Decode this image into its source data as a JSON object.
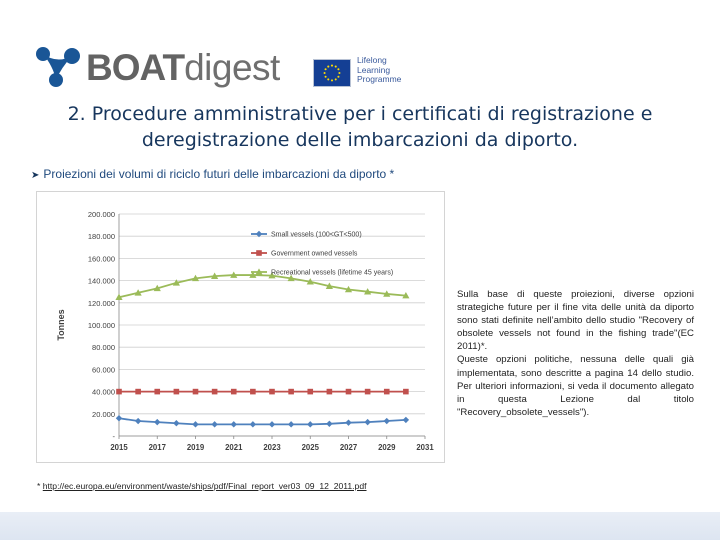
{
  "header": {
    "brand_bold": "BOAT",
    "brand_light": "digest",
    "programme_lines": [
      "Lifelong",
      "Learning",
      "Programme"
    ]
  },
  "title": {
    "line1": "2. Procedure amministrative per i certificati di registrazione e",
    "line2": "deregistrazione delle imbarcazioni da diporto."
  },
  "bullet": {
    "text": "Proiezioni dei volumi di riciclo futuri delle imbarcazioni da diporto *"
  },
  "side_text": {
    "paragraph1": "Sulla base di queste proiezioni, diverse opzioni strategiche future per il fine vita delle unità da diporto sono stati definite nell’ambito dello studio \"Recovery of obsolete vessels not found in the fishing trade\"(EC 2011)*.",
    "paragraph2": "Queste opzioni politiche, nessuna delle quali già implementata, sono descritte a pagina 14 dello studio. Per ulteriori informazioni, si veda il documento allegato in questa Lezione dal titolo \"Recovery_obsolete_vessels\")."
  },
  "footnote": {
    "marker": "*",
    "text": "http://ec.europa.eu/environment/waste/ships/pdf/Final_report_ver03_09_12_2011.pdf"
  },
  "colors": {
    "title": "#17365d",
    "bullet": "#1f497d",
    "small_vessels": "#4f81bd",
    "government_vessels": "#c0504d",
    "recreational_vessels": "#9bbb59",
    "brand_mark": "#1a5696"
  },
  "chart_data": {
    "type": "line",
    "ylabel": "Tonnes",
    "xlabel": "",
    "x": [
      2015,
      2016,
      2017,
      2018,
      2019,
      2020,
      2021,
      2022,
      2023,
      2024,
      2025,
      2026,
      2027,
      2028,
      2029,
      2030
    ],
    "x_ticks": [
      "2015",
      "2017",
      "2019",
      "2021",
      "2023",
      "2025",
      "2027",
      "2029",
      "2031"
    ],
    "y_ticks": [
      "-",
      "20.000",
      "40.000",
      "60.000",
      "80.000",
      "100.000",
      "120.000",
      "140.000",
      "160.000",
      "180.000",
      "200.000"
    ],
    "ylim": [
      0,
      200000
    ],
    "xlim": [
      2015,
      2031
    ],
    "grid": true,
    "legend_position": "top-right",
    "series": [
      {
        "name": "Small vessels (100<GT<500)",
        "color": "#4f81bd",
        "marker": "diamond",
        "values": [
          16000,
          13500,
          12500,
          11500,
          10500,
          10500,
          10500,
          10500,
          10500,
          10500,
          10500,
          11000,
          12000,
          12500,
          13500,
          14500
        ]
      },
      {
        "name": "Government owned vessels",
        "color": "#c0504d",
        "marker": "square",
        "values": [
          40000,
          40000,
          40000,
          40000,
          40000,
          40000,
          40000,
          40000,
          40000,
          40000,
          40000,
          40000,
          40000,
          40000,
          40000,
          40000
        ]
      },
      {
        "name": "Recreational vessels (lifetime 45 years)",
        "color": "#9bbb59",
        "marker": "triangle",
        "values": [
          125000,
          129000,
          133000,
          138000,
          142000,
          144000,
          145000,
          145000,
          144500,
          142000,
          139000,
          135000,
          132000,
          130000,
          128000,
          126500
        ]
      }
    ]
  }
}
